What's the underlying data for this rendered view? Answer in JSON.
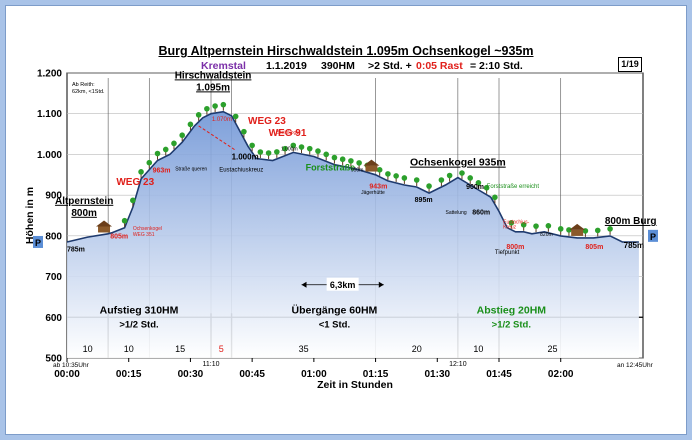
{
  "header": {
    "title": "Burg Altpernstein Hirschwaldstein 1.095m Ochsenkogel ~935m",
    "region": "Kremstal",
    "date": "1.1.2019",
    "hm": "390HM",
    "walk": ">2 Std. +",
    "rest": "0:05 Rast",
    "total": "= 2:10 Std.",
    "page": "1/19"
  },
  "notes": {
    "line1": "Ab Reith:",
    "line2": "62km, <1Std."
  },
  "colors": {
    "area_fill": "#b3c9ec",
    "area_top": "#6f95d6",
    "line": "#1e3a6e",
    "red": "#e0201b",
    "green": "#1a8f1a",
    "tree": "#2ca02c",
    "hut": "#8b5a2b",
    "frame_bg": "#a9c3e8"
  },
  "chart_data": {
    "type": "area",
    "title": "Burg Altpernstein Hirschwaldstein 1.095m Ochsenkogel ~935m",
    "xlabel": "Zeit in Stunden",
    "ylabel": "Höhen in m",
    "xlim": [
      0,
      140
    ],
    "ylim": [
      500,
      1200
    ],
    "x_ticks": [
      {
        "min": 0,
        "label": "00:00"
      },
      {
        "min": 15,
        "label": "00:15"
      },
      {
        "min": 30,
        "label": "00:30"
      },
      {
        "min": 45,
        "label": "00:45"
      },
      {
        "min": 60,
        "label": "01:00"
      },
      {
        "min": 75,
        "label": "01:15"
      },
      {
        "min": 90,
        "label": "01:30"
      },
      {
        "min": 105,
        "label": "01:45"
      },
      {
        "min": 120,
        "label": "02:00"
      }
    ],
    "y_ticks": [
      500,
      600,
      700,
      800,
      900,
      1000,
      1100,
      1200
    ],
    "profile": {
      "x": [
        0,
        5,
        10,
        11,
        14,
        16,
        18,
        22,
        25,
        28,
        31,
        33,
        35,
        38,
        40,
        44,
        46,
        50,
        55,
        60,
        65,
        70,
        75,
        78,
        82,
        85,
        88,
        90,
        92,
        95,
        98,
        103,
        105,
        107,
        109,
        111,
        113,
        116,
        120,
        124,
        128,
        132,
        135,
        139
      ],
      "y": [
        785,
        797,
        805,
        808,
        820,
        870,
        940,
        985,
        1000,
        1030,
        1070,
        1090,
        1100,
        1105,
        1095,
        1020,
        990,
        985,
        1005,
        995,
        975,
        965,
        950,
        935,
        925,
        920,
        905,
        915,
        925,
        943,
        925,
        895,
        860,
        820,
        810,
        810,
        805,
        810,
        800,
        795,
        795,
        800,
        785,
        785
      ]
    },
    "markers": [
      {
        "min": 10,
        "label": "Altpernstein",
        "sub": "800m"
      },
      {
        "min": 35.5,
        "label": "Hirschwaldstein",
        "sub": "1.095m"
      },
      {
        "min": 95,
        "label": "Ochsenkogel 935m",
        "sub": ""
      },
      {
        "min": 137,
        "label": "800m Burg",
        "sub": ""
      }
    ],
    "annotations": [
      {
        "text": "WEG 23",
        "x": 12,
        "y": 925,
        "color": "red",
        "size": 10
      },
      {
        "text": "WEG 23",
        "x": 44,
        "y": 1075,
        "color": "red",
        "size": 10
      },
      {
        "text": "WEG 91",
        "x": 49,
        "y": 1045,
        "color": "red",
        "size": 10
      },
      {
        "text": "Forststraße",
        "x": 58,
        "y": 960,
        "color": "green",
        "size": 9
      },
      {
        "text": "1.000m",
        "x": 40,
        "y": 988,
        "color": "black",
        "size": 8
      },
      {
        "text": "Eustachiuskreuz",
        "x": 37,
        "y": 958,
        "color": "black",
        "size": 6
      },
      {
        "text": "895m",
        "x": 84.5,
        "y": 883,
        "color": "black",
        "size": 7
      },
      {
        "text": "900m",
        "x": 97,
        "y": 915,
        "color": "black",
        "size": 7
      },
      {
        "text": "Forststraße erreicht",
        "x": 102,
        "y": 918,
        "color": "green",
        "size": 6
      },
      {
        "text": "860m",
        "x": 98.5,
        "y": 853,
        "color": "black",
        "size": 7
      },
      {
        "text": "Sattelung",
        "x": 92,
        "y": 854,
        "color": "black",
        "size": 5
      },
      {
        "text": "785m",
        "x": 135.3,
        "y": 770,
        "color": "black",
        "size": 8
      },
      {
        "text": "785m",
        "x": 0,
        "y": 762,
        "color": "black",
        "size": 7
      },
      {
        "text": "805m",
        "x": 10.5,
        "y": 793,
        "color": "red",
        "size": 7
      },
      {
        "text": "963m",
        "x": 20.8,
        "y": 956,
        "color": "red",
        "size": 7
      },
      {
        "text": "943m",
        "x": 73.5,
        "y": 916,
        "color": "red",
        "size": 7
      },
      {
        "text": "800m",
        "x": 106.8,
        "y": 768,
        "color": "red",
        "size": 7
      },
      {
        "text": "805m",
        "x": 126,
        "y": 768,
        "color": "red",
        "size": 7
      },
      {
        "text": "Tiefpunkt",
        "x": 104,
        "y": 755,
        "color": "black",
        "size": 6
      },
      {
        "text": "Ochsenkogel",
        "x": 16,
        "y": 815,
        "color": "red",
        "size": 5
      },
      {
        "text": "WEG 351",
        "x": 16,
        "y": 800,
        "color": "red",
        "size": 5
      },
      {
        "text": "Straße queren",
        "x": 26.3,
        "y": 960,
        "color": "black",
        "size": 5
      },
      {
        "text": "Steinkogel",
        "x": 51,
        "y": 1050,
        "color": "red",
        "size": 5
      },
      {
        "text": "Jägerhütte",
        "x": 71.5,
        "y": 903,
        "color": "black",
        "size": 5
      },
      {
        "text": "Eustachius-",
        "x": 106,
        "y": 830,
        "color": "red",
        "size": 5
      },
      {
        "text": "Kreuz",
        "x": 106,
        "y": 818,
        "color": "red",
        "size": 5
      },
      {
        "text": "1.000m",
        "x": 52,
        "y": 1010,
        "color": "black",
        "size": 5
      },
      {
        "text": "950m",
        "x": 69,
        "y": 958,
        "color": "black",
        "size": 5
      },
      {
        "text": "820m",
        "x": 115,
        "y": 800,
        "color": "black",
        "size": 5
      },
      {
        "text": "1.070m",
        "x": 35.2,
        "y": 1082,
        "color": "red",
        "size": 6
      }
    ],
    "distance": {
      "text": "6,3km",
      "x1": 57,
      "x2": 77,
      "y": 680
    },
    "segments": [
      {
        "label": "Aufstieg 310HM",
        "sub": ">1/2 Std.",
        "x_center": 17.5,
        "color": "black"
      },
      {
        "label": "Übergänge 60HM",
        "sub": "<1 Std.",
        "x_center": 65,
        "color": "black"
      },
      {
        "label": "Abstieg 20HM",
        "sub": ">1/2 Std.",
        "x_center": 108,
        "color": "green"
      }
    ],
    "phase_lines": [
      10,
      35,
      40,
      95,
      105
    ],
    "minute_lines": [
      10,
      20,
      35,
      40,
      75,
      95,
      105,
      120
    ],
    "interval_minutes": [
      {
        "x": 5,
        "label": "10",
        "color": "black"
      },
      {
        "x": 15,
        "label": "10",
        "color": "black"
      },
      {
        "x": 27.5,
        "label": "15",
        "color": "black"
      },
      {
        "x": 37.5,
        "label": "5",
        "color": "red"
      },
      {
        "x": 57.5,
        "label": "35",
        "color": "black"
      },
      {
        "x": 85,
        "label": "20",
        "color": "black"
      },
      {
        "x": 100,
        "label": "10",
        "color": "black"
      },
      {
        "x": 118,
        "label": "25",
        "color": "black"
      }
    ],
    "time_marks": [
      {
        "text": "11:10",
        "x": 35
      },
      {
        "text": "12:10",
        "x": 95
      }
    ],
    "start_time": "ab 10:35Uhr",
    "end_time": "an 12:45Uhr",
    "parking_label": "P",
    "huts": [
      9,
      74,
      124
    ],
    "trees": [
      14,
      16,
      18,
      20,
      22,
      24,
      26,
      28,
      30,
      32,
      34,
      36,
      38,
      41,
      43,
      45,
      47,
      49,
      51,
      53,
      55,
      57,
      59,
      61,
      63,
      65,
      67,
      69,
      71,
      73,
      76,
      78,
      80,
      82,
      85,
      88,
      91,
      93,
      96,
      98,
      100,
      102,
      104,
      108,
      111,
      114,
      117,
      120,
      122,
      126,
      129,
      132
    ]
  }
}
